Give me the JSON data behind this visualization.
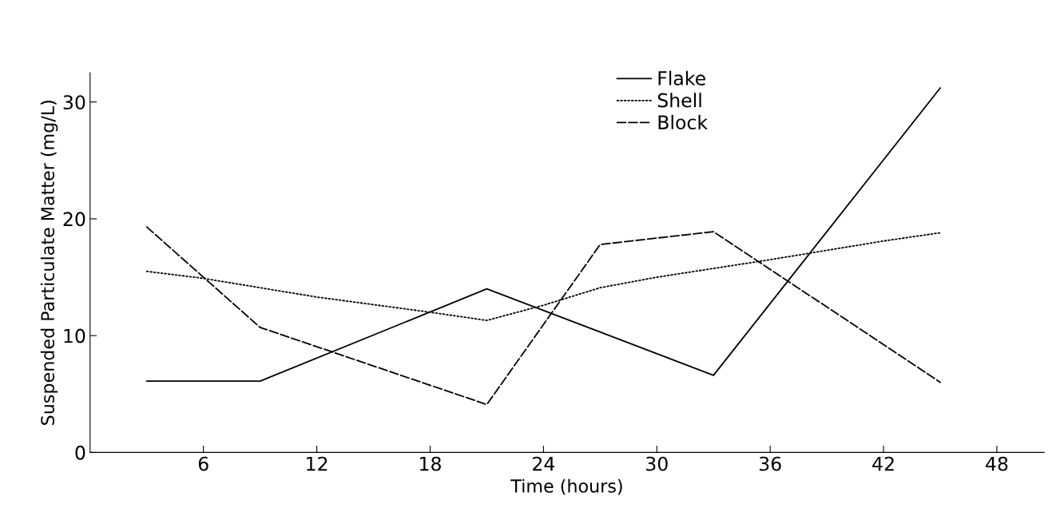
{
  "chart_data": {
    "type": "line",
    "xlabel": "Time (hours)",
    "ylabel": "Suspended Particulate Matter (mg/L)",
    "xlim": [
      0,
      50.5
    ],
    "xticks": [
      6,
      12,
      18,
      24,
      30,
      36,
      42,
      48
    ],
    "ylim": [
      0,
      32.5
    ],
    "yticks": [
      0,
      10,
      20,
      30
    ],
    "grid": false,
    "legend": "top",
    "marker": "none",
    "series": [
      {
        "name": "Flake",
        "color": "#000000",
        "line_style": "solid",
        "x": [
          3,
          9,
          21,
          33,
          45
        ],
        "values": [
          6.1,
          6.1,
          14.0,
          6.6,
          31.2
        ]
      },
      {
        "name": "Shell",
        "color": "#000000",
        "line_style": "dotted",
        "x": [
          3,
          6,
          12,
          18,
          21,
          24,
          27,
          30,
          36,
          42,
          45
        ],
        "values": [
          15.5,
          14.9,
          13.3,
          12.0,
          11.3,
          12.6,
          14.1,
          15.0,
          16.5,
          18.1,
          18.8
        ]
      },
      {
        "name": "Block",
        "color": "#000000",
        "line_style": "dashed",
        "x": [
          3,
          9,
          21,
          27,
          33,
          45
        ],
        "values": [
          19.3,
          10.7,
          4.1,
          17.8,
          18.9,
          6.0
        ]
      }
    ]
  }
}
